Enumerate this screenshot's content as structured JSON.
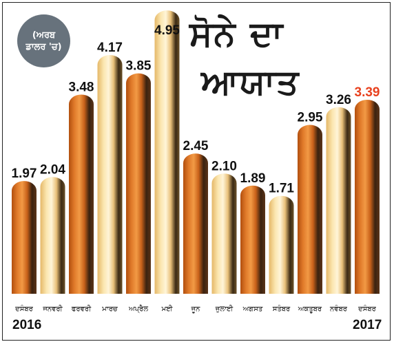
{
  "title": {
    "line1": "ਸੋਨੇ ਦਾ",
    "line2": "ਆਯਾਤ"
  },
  "unit_badge": {
    "line1": "(ਅਰਬ",
    "line2": "ਡਾਲਰ 'ਚ)"
  },
  "years": {
    "start": "2016",
    "end": "2017"
  },
  "colors": {
    "orange_bar": "#d86a1c",
    "cream_bar": "#f3cf82",
    "value_text": "#111111",
    "highlight_value": "#e8411e"
  },
  "chart_data": {
    "type": "bar",
    "title": "ਸੋਨੇ ਦਾ ਆਯਾਤ",
    "unit": "(ਅਰਬ ਡਾਲਰ 'ਚ)",
    "categories": [
      "ਦਸੰਬਰ",
      "ਜਨਵਰੀ",
      "ਫਰਵਰੀ",
      "ਮਾਰਚ",
      "ਅਪ੍ਰੈਲ",
      "ਮਈ",
      "ਜੂਨ",
      "ਜੁਲਾਈ",
      "ਅਗਸਤ",
      "ਸਤੰਬਰ",
      "ਅਕਤੂਬਰ",
      "ਨਵੰਬਰ",
      "ਦਸੰਬਰ"
    ],
    "value_labels": [
      "1.97",
      "2.04",
      "3.48",
      "4.17",
      "3.85",
      "4.95",
      "2.45",
      "2.10",
      "1.89",
      "1.71",
      "2.95",
      "3.26",
      "3.39"
    ],
    "values": [
      1.97,
      2.04,
      3.48,
      4.17,
      3.85,
      4.95,
      2.45,
      2.1,
      1.89,
      1.71,
      2.95,
      3.26,
      3.39
    ],
    "bar_styles": [
      "orange",
      "cream",
      "orange",
      "cream",
      "orange",
      "cream",
      "orange",
      "cream",
      "orange",
      "cream",
      "orange",
      "cream",
      "orange"
    ],
    "highlight_index": 12,
    "grid": false,
    "legend": "none"
  }
}
